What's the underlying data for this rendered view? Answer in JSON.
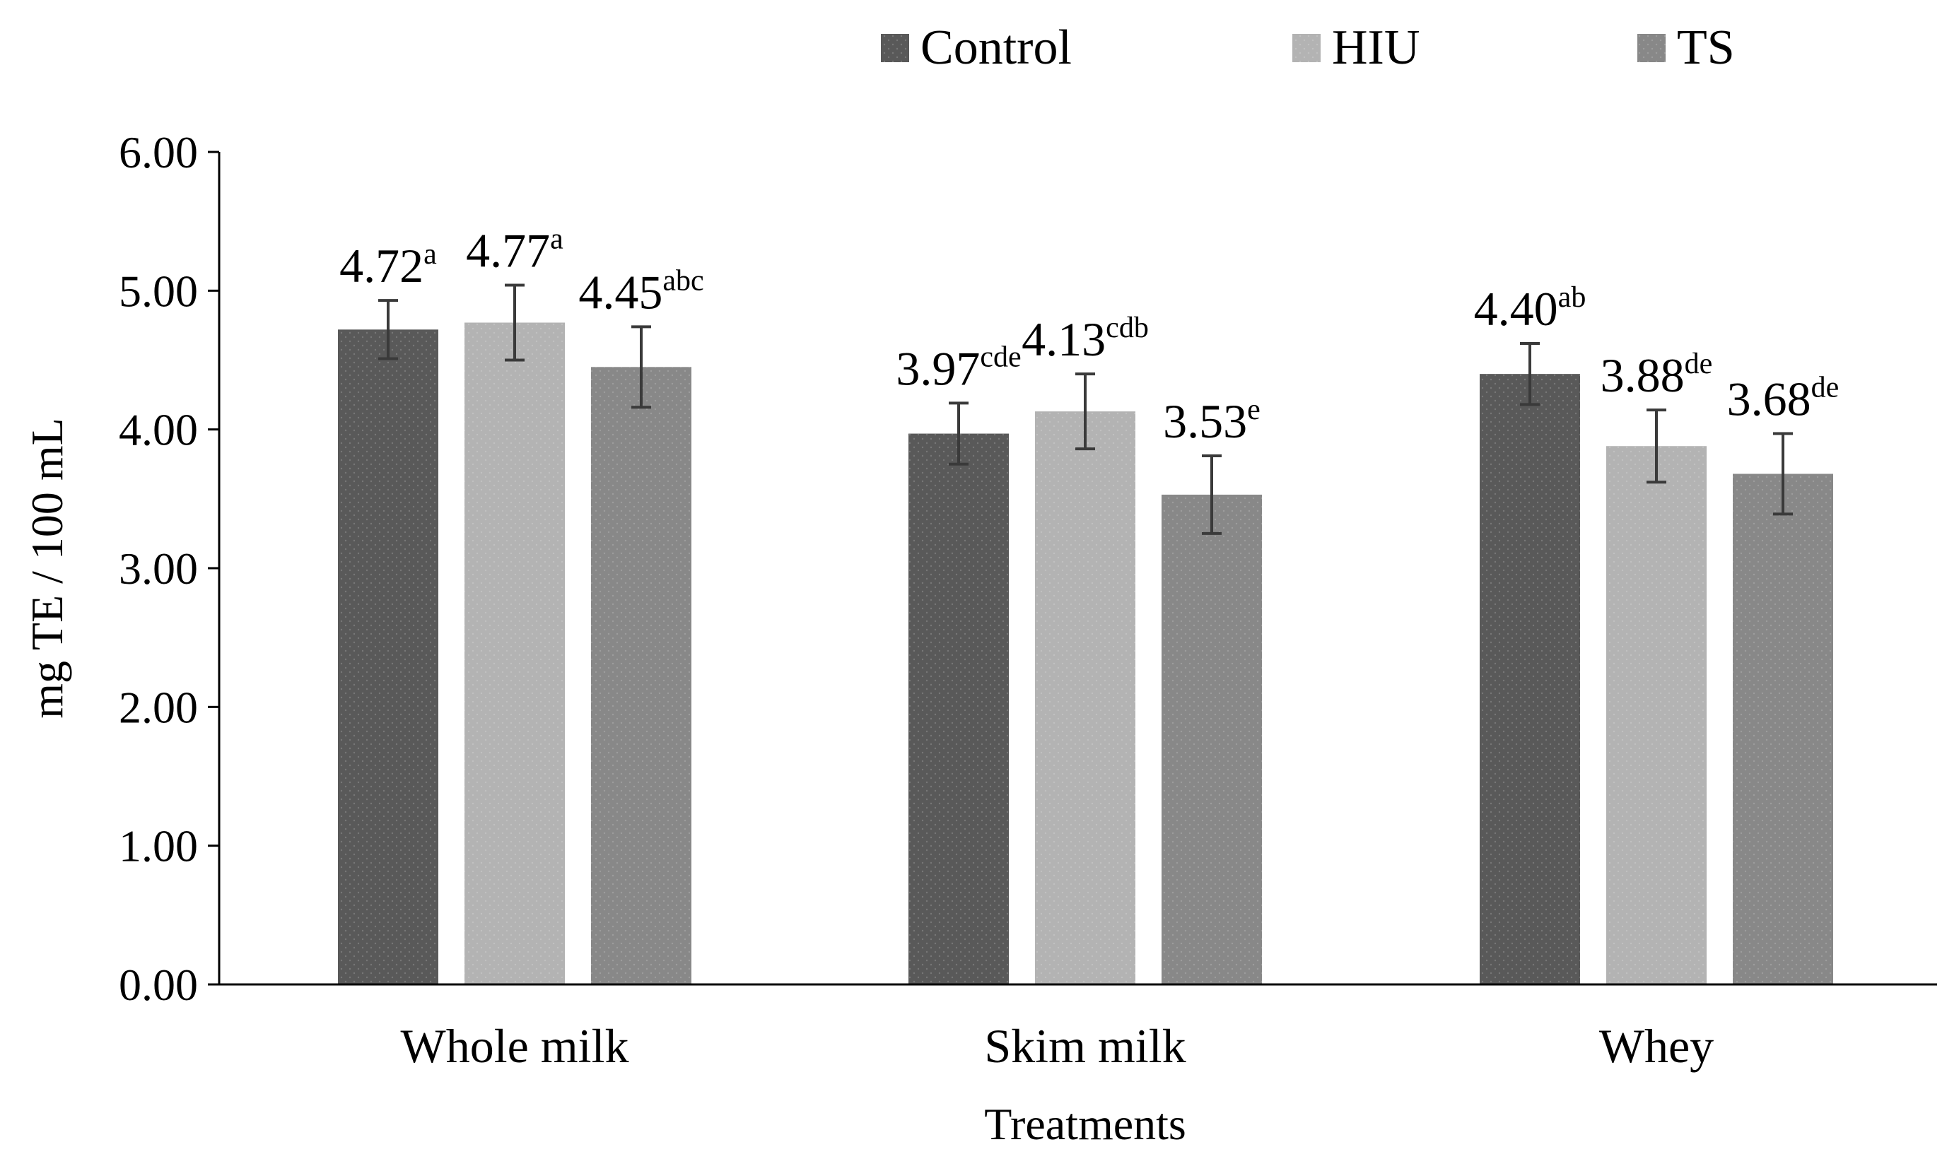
{
  "chart_data": {
    "type": "bar",
    "title": "",
    "xlabel": "Treatments",
    "ylabel": "mg TE / 100 mL",
    "ylim": [
      0,
      6
    ],
    "yticks": [
      "0.00",
      "1.00",
      "2.00",
      "3.00",
      "4.00",
      "5.00",
      "6.00"
    ],
    "ytick_values": [
      0,
      1,
      2,
      3,
      4,
      5,
      6
    ],
    "grid": false,
    "legend_position": "top",
    "categories": [
      "Whole milk",
      "Skim milk",
      "Whey"
    ],
    "series": [
      {
        "name": "Control",
        "color": "#595959",
        "values": [
          4.72,
          3.97,
          4.4
        ],
        "errors": [
          0.21,
          0.22,
          0.22
        ],
        "labels": [
          "4.72",
          "3.97",
          "4.40"
        ],
        "letters": [
          "a",
          "cde",
          "ab"
        ]
      },
      {
        "name": "HIU",
        "color": "#b3b3b3",
        "values": [
          4.77,
          4.13,
          3.88
        ],
        "errors": [
          0.27,
          0.27,
          0.26
        ],
        "labels": [
          "4.77",
          "4.13",
          "3.88"
        ],
        "letters": [
          "a",
          "cdb",
          "de"
        ]
      },
      {
        "name": "TS",
        "color": "#888888",
        "values": [
          4.45,
          3.53,
          3.68
        ],
        "errors": [
          0.29,
          0.28,
          0.29
        ],
        "labels": [
          "4.45",
          "3.53",
          "3.68"
        ],
        "letters": [
          "abc",
          "e",
          "de"
        ]
      }
    ]
  }
}
